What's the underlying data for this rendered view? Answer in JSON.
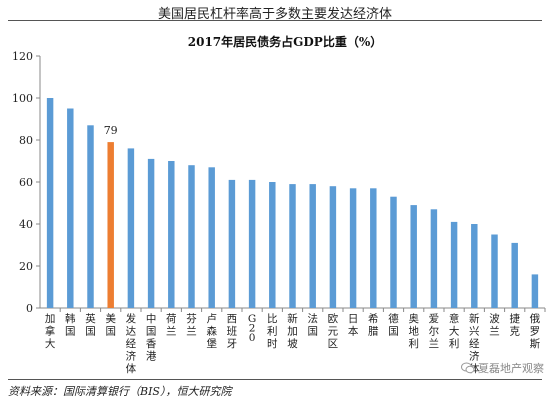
{
  "header": {
    "title": "美国居民杠杆率高于多数主要发达经济体"
  },
  "source": "资料来源：国际清算银行（BIS），恒大研究院",
  "watermark": {
    "text": "夏磊地产观察",
    "icon": "wechat-icon"
  },
  "colors": {
    "bar": "#5b9bd5",
    "highlight": "#ed7d31",
    "axis": "#888888"
  },
  "chart_data": {
    "type": "bar",
    "title": "2017年居民债务占GDP比重（%）",
    "categories": [
      "加拿大",
      "韩国",
      "英国",
      "美国",
      "发达经济体",
      "中国香港",
      "荷兰",
      "芬兰",
      "卢森堡",
      "西班牙",
      "G20",
      "比利时",
      "新加坡",
      "法国",
      "欧元区",
      "日本",
      "希腊",
      "德国",
      "奥地利",
      "爱尔兰",
      "意大利",
      "新兴经济体",
      "波兰",
      "捷克",
      "俄罗斯"
    ],
    "values": [
      100,
      95,
      87,
      79,
      76,
      71,
      70,
      68,
      67,
      61,
      61,
      60,
      59,
      59,
      58,
      57,
      57,
      53,
      49,
      47,
      41,
      40,
      35,
      31,
      16
    ],
    "highlight_index": 3,
    "data_labels": [
      {
        "index": 3,
        "text": "79"
      }
    ],
    "ylim": [
      0,
      120
    ],
    "yticks": [
      0,
      20,
      40,
      60,
      80,
      100,
      120
    ],
    "xlabel": "",
    "ylabel": "",
    "grid": false
  }
}
